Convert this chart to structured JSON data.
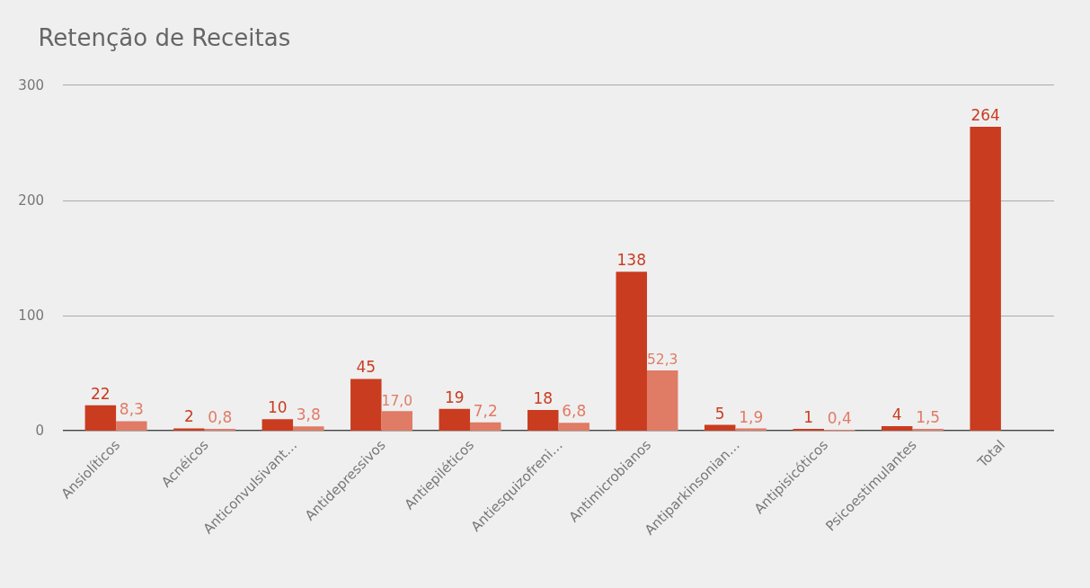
{
  "chart_data": {
    "type": "bar",
    "title": "Retenção de Receitas",
    "categories": [
      "Ansiolíticos",
      "Acnéicos",
      "Anticonvulsivant…",
      "Antidepressivos",
      "Antiepiléticos",
      "Antiesquizofreni…",
      "Antimicrobianos",
      "Antiparkinsonian…",
      "Antipisicóticos",
      "Psicoestimulantes",
      "Total"
    ],
    "series": [
      {
        "color": "#c93c20",
        "values": [
          22,
          2,
          10,
          45,
          19,
          18,
          138,
          5,
          1,
          4,
          264
        ],
        "value_labels": [
          "22",
          "2",
          "10",
          "45",
          "19",
          "18",
          "138",
          "5",
          "1",
          "4",
          "264"
        ]
      },
      {
        "color": "#e07b66",
        "values": [
          8.3,
          0.8,
          3.8,
          17.0,
          7.2,
          6.8,
          52.3,
          1.9,
          0.4,
          1.5,
          null
        ],
        "value_labels": [
          "8,3",
          "0,8",
          "3,8",
          "17,0",
          "7,2",
          "6,8",
          "52,3",
          "1,9",
          "0,4",
          "1,5",
          null
        ]
      }
    ],
    "ylim": [
      0,
      300
    ],
    "yticks": [
      0,
      100,
      200,
      300
    ],
    "grid": "y"
  }
}
